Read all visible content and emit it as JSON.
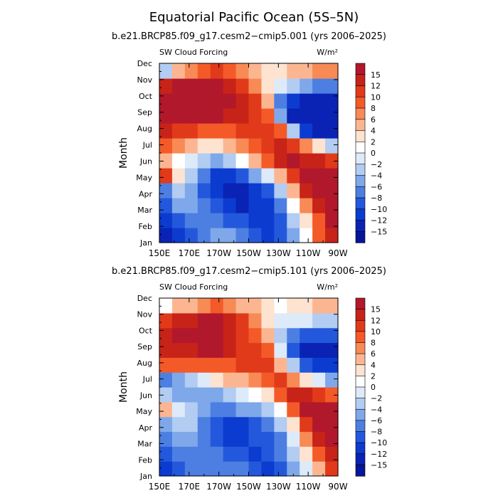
{
  "main_title": "Equatorial Pacific Ocean (5S–5N)",
  "chart_data": [
    {
      "type": "heatmap",
      "title": "b.e21.BRCP85.f09_g17.cesm2−cmip5.001 (yrs 2006–2025)",
      "left_label": "SW Cloud Forcing",
      "units": "W/m²",
      "ylabel": "Month",
      "x_ticks": [
        "150E",
        "170E",
        "170W",
        "150W",
        "130W",
        "110W",
        "90W"
      ],
      "y_ticks": [
        "Jan",
        "Feb",
        "Mar",
        "Apr",
        "May",
        "Jun",
        "Jul",
        "Aug",
        "Sep",
        "Oct",
        "Nov",
        "Dec"
      ],
      "lon_range": [
        "150E",
        "90W"
      ],
      "months": [
        "Jan",
        "Feb",
        "Mar",
        "Apr",
        "May",
        "Jun",
        "Jul",
        "Aug",
        "Sep",
        "Oct",
        "Nov",
        "Dec"
      ],
      "values": [
        [
          -15,
          -12,
          -10,
          -8,
          -6,
          -6,
          -8,
          -10,
          -12,
          -10,
          -6,
          0,
          8,
          14
        ],
        [
          -12,
          -10,
          -8,
          -8,
          -8,
          -10,
          -10,
          -12,
          -12,
          -10,
          -4,
          2,
          8,
          15
        ],
        [
          -10,
          -6,
          -6,
          -8,
          -10,
          -12,
          -15,
          -12,
          -12,
          -8,
          0,
          6,
          12,
          15
        ],
        [
          -8,
          -4,
          -6,
          -10,
          -12,
          -15,
          -15,
          -12,
          -10,
          -4,
          4,
          12,
          15,
          15
        ],
        [
          10,
          2,
          -4,
          -8,
          -12,
          -12,
          -10,
          -6,
          -2,
          4,
          10,
          15,
          15,
          15
        ],
        [
          4,
          0,
          -2,
          -4,
          -6,
          -4,
          0,
          4,
          8,
          12,
          15,
          12,
          12,
          10
        ],
        [
          8,
          6,
          4,
          2,
          2,
          4,
          6,
          8,
          10,
          12,
          10,
          6,
          2,
          -4
        ],
        [
          12,
          10,
          10,
          8,
          8,
          8,
          10,
          10,
          10,
          8,
          -4,
          -12,
          -15,
          -15
        ],
        [
          15,
          15,
          15,
          15,
          15,
          12,
          12,
          10,
          8,
          -6,
          -15,
          -15,
          -15,
          -15
        ],
        [
          15,
          15,
          15,
          15,
          15,
          15,
          12,
          10,
          4,
          -8,
          -12,
          -15,
          -15,
          -15
        ],
        [
          12,
          15,
          15,
          15,
          15,
          12,
          10,
          6,
          2,
          -2,
          -4,
          -6,
          -8,
          -8
        ],
        [
          -4,
          4,
          6,
          8,
          10,
          8,
          6,
          4,
          2,
          2,
          4,
          4,
          6,
          6
        ]
      ],
      "colorbar": {
        "labels": [
          "15",
          "12",
          "10",
          "8",
          "6",
          "4",
          "2",
          "0",
          "−2",
          "−4",
          "−6",
          "−8",
          "−10",
          "−12",
          "−15"
        ],
        "colors": [
          "#b2182b",
          "#c72318",
          "#e13a1a",
          "#f45a28",
          "#f78a55",
          "#fbb691",
          "#fde3d0",
          "#ffffff",
          "#ddeafa",
          "#b2ccf2",
          "#7fa8ea",
          "#4d7fe2",
          "#2458dc",
          "#0c3bd0",
          "#0a23b4",
          "#061696"
        ],
        "bounds": [
          -15,
          -12,
          -10,
          -8,
          -6,
          -4,
          -2,
          0,
          2,
          4,
          6,
          8,
          10,
          12,
          15
        ]
      }
    },
    {
      "type": "heatmap",
      "title": "b.e21.BRCP85.f09_g17.cesm2−cmip5.101 (yrs 2006–2025)",
      "left_label": "SW Cloud Forcing",
      "units": "W/m²",
      "ylabel": "Month",
      "x_ticks": [
        "150E",
        "170E",
        "170W",
        "150W",
        "130W",
        "110W",
        "90W"
      ],
      "y_ticks": [
        "Jan",
        "Feb",
        "Mar",
        "Apr",
        "May",
        "Jun",
        "Jul",
        "Aug",
        "Sep",
        "Oct",
        "Nov",
        "Dec"
      ],
      "lon_range": [
        "150E",
        "90W"
      ],
      "months": [
        "Jan",
        "Feb",
        "Mar",
        "Apr",
        "May",
        "Jun",
        "Jul",
        "Aug",
        "Sep",
        "Oct",
        "Nov",
        "Dec"
      ],
      "values": [
        [
          -12,
          -10,
          -8,
          -8,
          -8,
          -8,
          -8,
          -10,
          -12,
          -10,
          -6,
          -2,
          4,
          10
        ],
        [
          -10,
          -8,
          -8,
          -8,
          -8,
          -10,
          -10,
          -12,
          -10,
          -8,
          -4,
          2,
          8,
          12
        ],
        [
          -8,
          -6,
          -6,
          -8,
          -10,
          -12,
          -12,
          -10,
          -10,
          -8,
          -2,
          6,
          12,
          15
        ],
        [
          -6,
          -4,
          -4,
          -8,
          -10,
          -12,
          -12,
          -10,
          -8,
          -4,
          2,
          10,
          15,
          15
        ],
        [
          4,
          -2,
          -4,
          -6,
          -8,
          -8,
          -6,
          -6,
          -4,
          0,
          8,
          15,
          15,
          15
        ],
        [
          -4,
          -6,
          -6,
          -6,
          -6,
          -4,
          -2,
          0,
          2,
          8,
          12,
          12,
          10,
          8
        ],
        [
          -8,
          -6,
          -4,
          -2,
          2,
          4,
          4,
          6,
          8,
          10,
          6,
          2,
          -2,
          -6
        ],
        [
          8,
          8,
          8,
          8,
          8,
          8,
          10,
          10,
          10,
          4,
          -4,
          -10,
          -12,
          -12
        ],
        [
          12,
          12,
          12,
          15,
          15,
          12,
          10,
          10,
          8,
          -2,
          -10,
          -15,
          -15,
          -15
        ],
        [
          12,
          15,
          15,
          15,
          15,
          12,
          10,
          8,
          4,
          -4,
          -8,
          -10,
          -10,
          -10
        ],
        [
          10,
          12,
          12,
          15,
          15,
          12,
          10,
          6,
          2,
          -2,
          -2,
          -2,
          -4,
          -4
        ],
        [
          0,
          4,
          4,
          6,
          8,
          6,
          4,
          4,
          2,
          0,
          2,
          2,
          4,
          4
        ]
      ],
      "colorbar": {
        "labels": [
          "15",
          "12",
          "10",
          "8",
          "6",
          "4",
          "2",
          "0",
          "−2",
          "−4",
          "−6",
          "−8",
          "−10",
          "−12",
          "−15"
        ],
        "colors": [
          "#b2182b",
          "#c72318",
          "#e13a1a",
          "#f45a28",
          "#f78a55",
          "#fbb691",
          "#fde3d0",
          "#ffffff",
          "#ddeafa",
          "#b2ccf2",
          "#7fa8ea",
          "#4d7fe2",
          "#2458dc",
          "#0c3bd0",
          "#0a23b4",
          "#061696"
        ],
        "bounds": [
          -15,
          -12,
          -10,
          -8,
          -6,
          -4,
          -2,
          0,
          2,
          4,
          6,
          8,
          10,
          12,
          15
        ]
      }
    }
  ]
}
